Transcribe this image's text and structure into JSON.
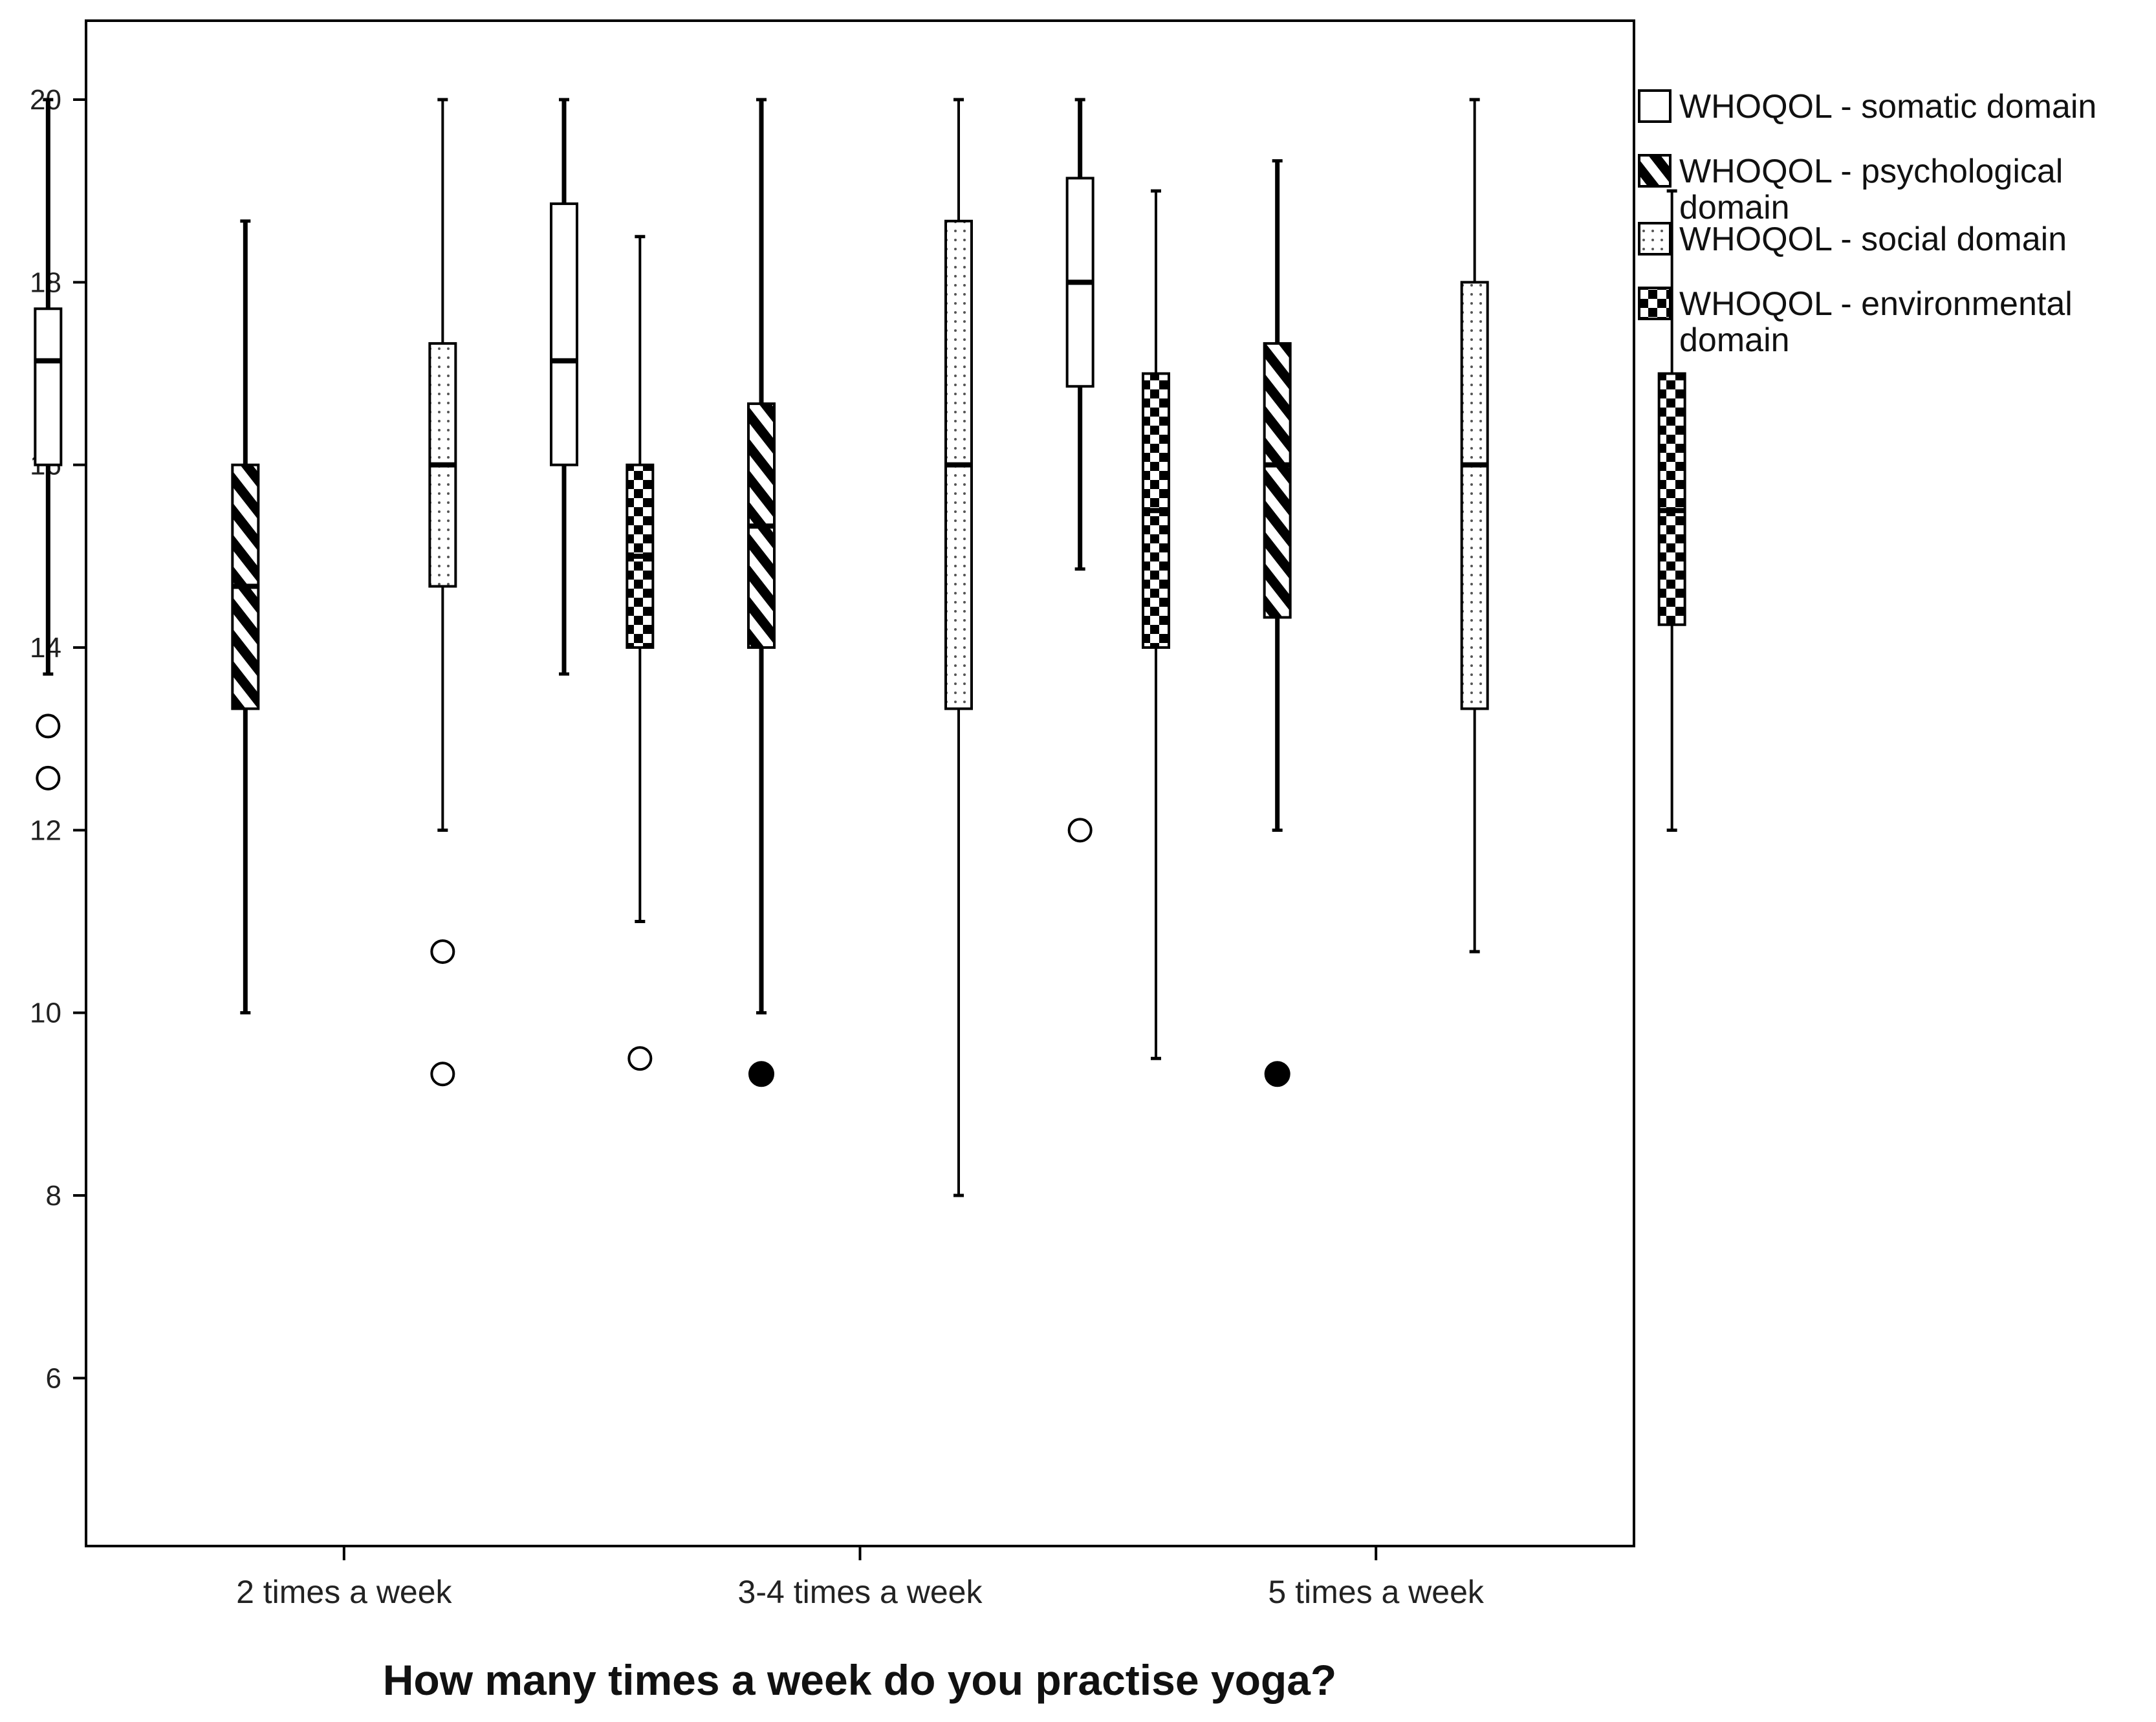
{
  "chart_data": {
    "type": "boxplot",
    "title": "",
    "xlabel": "How many times a week do you practise yoga?",
    "ylabel": "",
    "ylim": [
      4.3,
      20.9
    ],
    "yticks": [
      "6",
      "8",
      "10",
      "12",
      "14",
      "16",
      "18",
      "20"
    ],
    "grid": false,
    "legend_position": "top-right, outside plot",
    "categories": [
      "2 times a week",
      "3-4 times a week",
      "5 times a week"
    ],
    "series": [
      {
        "name": "WHOQOL - somatic domain",
        "pattern": "plain",
        "boxes": [
          {
            "whisker_low": 13.71,
            "q1": 16.0,
            "median": 17.14,
            "q3": 17.71,
            "whisker_high": 20.0,
            "outliers": [
              13.14,
              12.57
            ]
          },
          {
            "whisker_low": 13.71,
            "q1": 16.0,
            "median": 17.14,
            "q3": 18.86,
            "whisker_high": 20.0,
            "outliers": []
          },
          {
            "whisker_low": 14.86,
            "q1": 16.86,
            "median": 18.0,
            "q3": 19.14,
            "whisker_high": 20.0,
            "outliers": [
              12.0
            ]
          }
        ]
      },
      {
        "name": "WHOQOL - psychological domain",
        "pattern": "diagonal-stripes",
        "boxes": [
          {
            "whisker_low": 10.0,
            "q1": 13.33,
            "median": 14.67,
            "q3": 16.0,
            "whisker_high": 18.67,
            "outliers": []
          },
          {
            "whisker_low": 10.0,
            "q1": 14.0,
            "median": 15.33,
            "q3": 16.67,
            "whisker_high": 20.0,
            "outliers": [
              9.33
            ]
          },
          {
            "whisker_low": 12.0,
            "q1": 14.33,
            "median": 16.0,
            "q3": 17.33,
            "whisker_high": 19.33,
            "outliers": [
              9.33
            ]
          }
        ]
      },
      {
        "name": "WHOQOL - social domain",
        "pattern": "dotted",
        "boxes": [
          {
            "whisker_low": 12.0,
            "q1": 14.67,
            "median": 16.0,
            "q3": 17.33,
            "whisker_high": 20.0,
            "outliers": [
              10.67,
              9.33
            ]
          },
          {
            "whisker_low": 8.0,
            "q1": 13.33,
            "median": 16.0,
            "q3": 18.67,
            "whisker_high": 20.0,
            "outliers": []
          },
          {
            "whisker_low": 10.67,
            "q1": 13.33,
            "median": 16.0,
            "q3": 18.0,
            "whisker_high": 20.0,
            "outliers": []
          }
        ]
      },
      {
        "name": "WHOQOL - environmental domain",
        "pattern": "checkerboard",
        "boxes": [
          {
            "whisker_low": 11.0,
            "q1": 14.0,
            "median": 15.0,
            "q3": 16.0,
            "whisker_high": 18.5,
            "outliers": [
              9.5
            ]
          },
          {
            "whisker_low": 9.5,
            "q1": 14.0,
            "median": 15.5,
            "q3": 17.0,
            "whisker_high": 19.0,
            "outliers": []
          },
          {
            "whisker_low": 12.0,
            "q1": 14.25,
            "median": 15.5,
            "q3": 17.0,
            "whisker_high": 19.0,
            "outliers": []
          }
        ]
      }
    ],
    "legend": [
      {
        "line1": "WHOQOL - somatic domain",
        "line2": ""
      },
      {
        "line1": "WHOQOL - psychological",
        "line2": "domain"
      },
      {
        "line1": "WHOQOL - social domain",
        "line2": ""
      },
      {
        "line1": "WHOQOL - environmental",
        "line2": "domain"
      }
    ]
  }
}
